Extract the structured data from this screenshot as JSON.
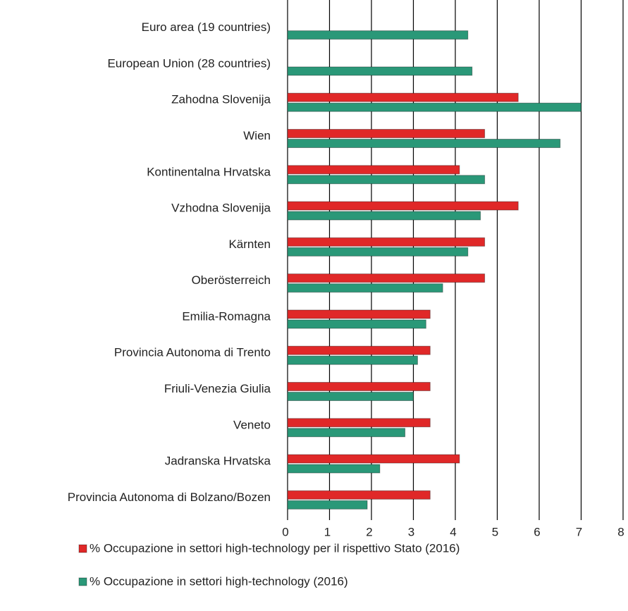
{
  "chart_data": {
    "type": "hbar",
    "categories": [
      "Euro area (19 countries)",
      "European Union (28 countries)",
      "Zahodna Slovenija",
      "Wien",
      "Kontinentalna Hrvatska",
      "Vzhodna Slovenija",
      "Kärnten",
      "Oberösterreich",
      "Emilia-Romagna",
      "Provincia Autonoma di Trento",
      "Friuli-Venezia Giulia",
      "Veneto",
      "Jadranska Hrvatska",
      "Provincia Autonoma di Bolzano/Bozen"
    ],
    "series": [
      {
        "name": "% Occupazione in settori high-technology per il rispettivo Stato (2016)",
        "color": "#e02828",
        "values": [
          null,
          null,
          5.5,
          4.7,
          4.1,
          5.5,
          4.7,
          4.7,
          3.4,
          3.4,
          3.4,
          3.4,
          4.1,
          3.4
        ]
      },
      {
        "name": "% Occupazione in settori high-technology (2016)",
        "color": "#2a9878",
        "values": [
          4.3,
          4.4,
          7.0,
          6.5,
          4.7,
          4.6,
          4.3,
          3.7,
          3.3,
          3.1,
          3.0,
          2.8,
          2.2,
          1.9
        ]
      }
    ],
    "xlim": [
      0,
      8
    ],
    "xticks": [
      0,
      1,
      2,
      3,
      4,
      5,
      6,
      7,
      8
    ],
    "grid": true,
    "legend": "bottom"
  }
}
